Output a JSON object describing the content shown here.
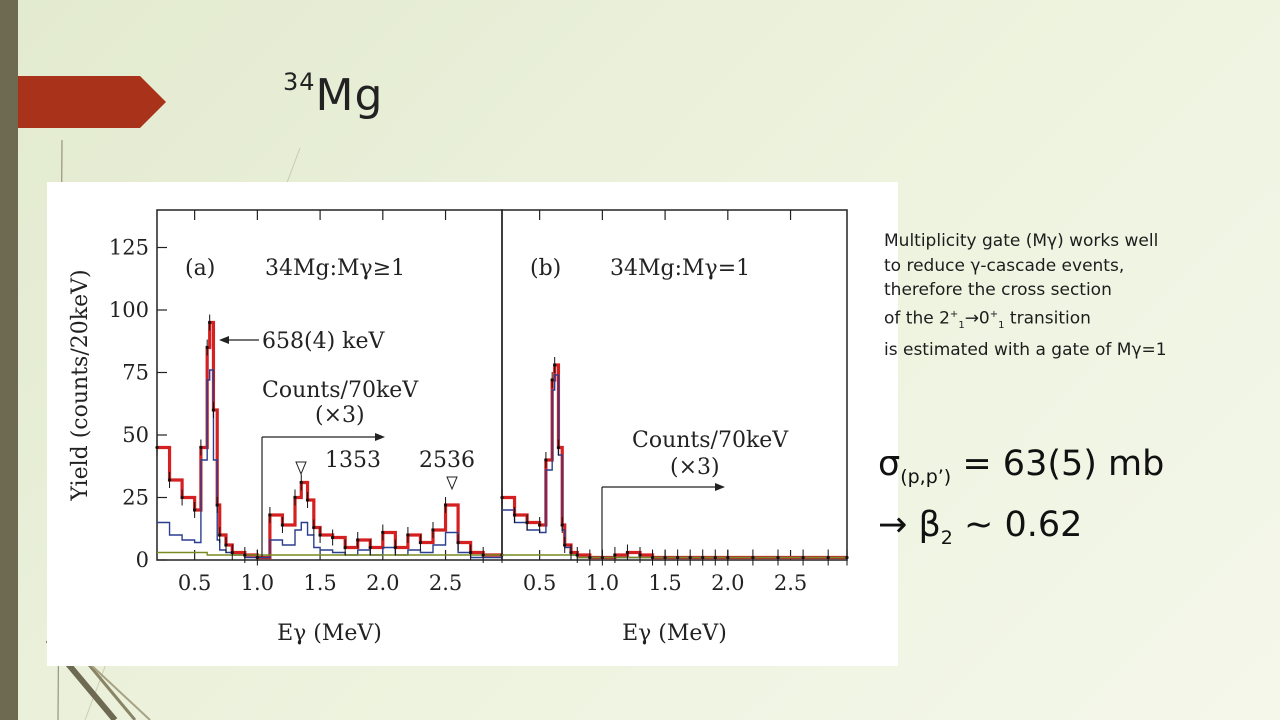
{
  "slide": {
    "title_sup": "34",
    "title_main": "Mg",
    "accent_color": "#a8321a",
    "bar_color": "#6e6a51"
  },
  "note": {
    "line1": "Multiplicity gate (Mγ) works well",
    "line2": "to reduce γ-cascade events,",
    "line3": "therefore the cross section",
    "line4_a": "of the 2",
    "line4_sup1": "+",
    "line4_sub1": "1",
    "line4_b": "→0",
    "line4_sup2": "+",
    "line4_sub2": "1",
    "line4_c": " transition",
    "line5": "is estimated with a gate of Mγ=1"
  },
  "result": {
    "sigma": "σ",
    "sigma_sub": "(p,p’)",
    "sigma_value": " = 63(5) mb",
    "beta_prefix": "→ β",
    "beta_sub": "2",
    "beta_value": " ~ 0.62"
  },
  "chart_data": [
    {
      "type": "line",
      "panel_label": "(a)",
      "gate_label": "34Mg:Mγ≥1",
      "xlabel": "Eγ (MeV)",
      "ylabel": "Yield (counts/20keV)",
      "xlim": [
        0.2,
        2.95
      ],
      "ylim": [
        0,
        140
      ],
      "xticks": [
        "0.5",
        "1.0",
        "1.5",
        "2.0",
        "2.5"
      ],
      "yticks": [
        "0",
        "25",
        "50",
        "75",
        "100",
        "125"
      ],
      "annotations": [
        "658(4) keV",
        "Counts/70keV",
        "(×3)",
        "1353",
        "2536"
      ],
      "series": [
        {
          "color": "#d42020",
          "x": [
            0.2,
            0.3,
            0.4,
            0.5,
            0.55,
            0.6,
            0.62,
            0.65,
            0.68,
            0.7,
            0.75,
            0.8,
            0.9,
            1.0,
            1.1,
            1.2,
            1.3,
            1.35,
            1.4,
            1.45,
            1.5,
            1.6,
            1.7,
            1.8,
            1.9,
            2.0,
            2.1,
            2.2,
            2.3,
            2.4,
            2.5,
            2.6,
            2.7,
            2.8,
            2.95
          ],
          "y": [
            45,
            32,
            25,
            20,
            45,
            85,
            95,
            60,
            22,
            10,
            6,
            3,
            2,
            1,
            18,
            14,
            25,
            31,
            24,
            13,
            10,
            9,
            5,
            8,
            5,
            11,
            5,
            10,
            7,
            12,
            22,
            7,
            3,
            2,
            2
          ]
        },
        {
          "color": "#2a3f8f",
          "x": [
            0.2,
            0.3,
            0.4,
            0.5,
            0.55,
            0.6,
            0.62,
            0.65,
            0.68,
            0.7,
            0.75,
            0.8,
            0.9,
            1.0,
            1.1,
            1.2,
            1.3,
            1.35,
            1.4,
            1.45,
            1.5,
            1.6,
            1.7,
            1.8,
            1.9,
            2.0,
            2.1,
            2.2,
            2.3,
            2.4,
            2.5,
            2.6,
            2.7,
            2.8,
            2.95
          ],
          "y": [
            15,
            10,
            8,
            7,
            40,
            72,
            76,
            40,
            8,
            4,
            3,
            2,
            1,
            1,
            8,
            6,
            12,
            15,
            10,
            5,
            4,
            3,
            2,
            4,
            2,
            5,
            2,
            4,
            3,
            6,
            11,
            3,
            1,
            1,
            1
          ]
        },
        {
          "color": "#7a8a20",
          "x": [
            0.2,
            0.4,
            0.6,
            0.8,
            1.0,
            1.4,
            1.8,
            2.2,
            2.6,
            2.95
          ],
          "y": [
            3,
            3,
            2,
            2,
            2,
            2,
            2,
            2,
            2,
            2
          ]
        }
      ]
    },
    {
      "type": "line",
      "panel_label": "(b)",
      "gate_label": "34Mg:Mγ=1",
      "xlabel": "Eγ (MeV)",
      "xlim": [
        0.2,
        2.95
      ],
      "ylim": [
        0,
        140
      ],
      "xticks": [
        "0.5",
        "1.0",
        "1.5",
        "2.0",
        "2.5"
      ],
      "annotations": [
        "Counts/70keV",
        "(×3)"
      ],
      "series": [
        {
          "color": "#d42020",
          "x": [
            0.2,
            0.3,
            0.4,
            0.5,
            0.55,
            0.6,
            0.62,
            0.65,
            0.68,
            0.7,
            0.75,
            0.8,
            0.9,
            1.0,
            1.1,
            1.2,
            1.3,
            1.4,
            1.5,
            1.6,
            1.7,
            1.8,
            1.9,
            2.0,
            2.2,
            2.4,
            2.6,
            2.8,
            2.95
          ],
          "y": [
            25,
            18,
            15,
            14,
            40,
            72,
            78,
            45,
            14,
            6,
            3,
            2,
            1,
            1,
            2,
            3,
            2,
            1,
            1,
            1,
            1,
            1,
            1,
            1,
            1,
            1,
            1,
            1,
            1
          ]
        },
        {
          "color": "#2a3f8f",
          "x": [
            0.2,
            0.3,
            0.4,
            0.5,
            0.55,
            0.6,
            0.62,
            0.65,
            0.68,
            0.7,
            0.75,
            0.8,
            0.9,
            1.0
          ],
          "y": [
            20,
            15,
            12,
            11,
            36,
            68,
            74,
            42,
            12,
            5,
            2,
            1,
            1,
            1
          ]
        },
        {
          "color": "#7a8a20",
          "x": [
            0.2,
            0.4,
            0.6,
            0.8,
            1.0,
            1.4,
            1.8,
            2.2,
            2.6,
            2.95
          ],
          "y": [
            2,
            2,
            2,
            1,
            1,
            1,
            1,
            1,
            1,
            1
          ]
        }
      ]
    }
  ]
}
